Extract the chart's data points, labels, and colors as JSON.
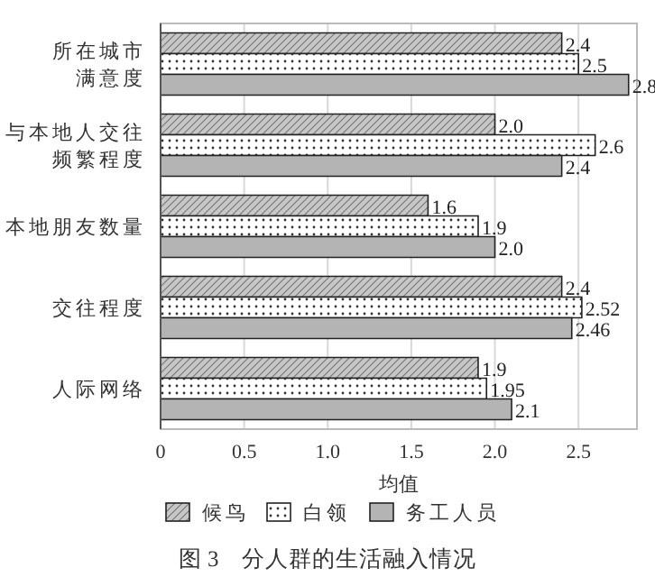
{
  "chart_data": {
    "type": "bar",
    "orientation": "horizontal",
    "title": "图 3　分人群的生活融入情况",
    "xlabel": "均值",
    "categories": [
      "所在城市满意度",
      "与本地人交往频繁程度",
      "本地朋友数量",
      "交往程度",
      "人际网络"
    ],
    "series": [
      {
        "name": "候鸟",
        "color": "#c8c8c8",
        "values": [
          2.4,
          2.0,
          1.6,
          2.4,
          1.9
        ],
        "value_labels": [
          "2.4",
          "2.0",
          "1.6",
          "2.4",
          "1.9"
        ]
      },
      {
        "name": "白领",
        "color": "#ffffff",
        "values": [
          2.5,
          2.6,
          1.9,
          2.52,
          1.95
        ],
        "value_labels": [
          "2.5",
          "2.6",
          "1.9",
          "2.52",
          "1.95"
        ]
      },
      {
        "name": "务工人员",
        "color": "#b4b4b4",
        "values": [
          2.8,
          2.4,
          2.0,
          2.46,
          2.1
        ],
        "value_labels": [
          "2.8",
          "2.4",
          "2.0",
          "2.46",
          "2.1"
        ]
      }
    ],
    "xlim": [
      0,
      2.85
    ],
    "xticks": [
      0,
      0.5,
      {
        "value": 1,
        "label": "1.0"
      },
      1.5,
      {
        "value": 2,
        "label": "2.0"
      },
      2.5
    ],
    "grid": "x",
    "legend": "bottom"
  }
}
